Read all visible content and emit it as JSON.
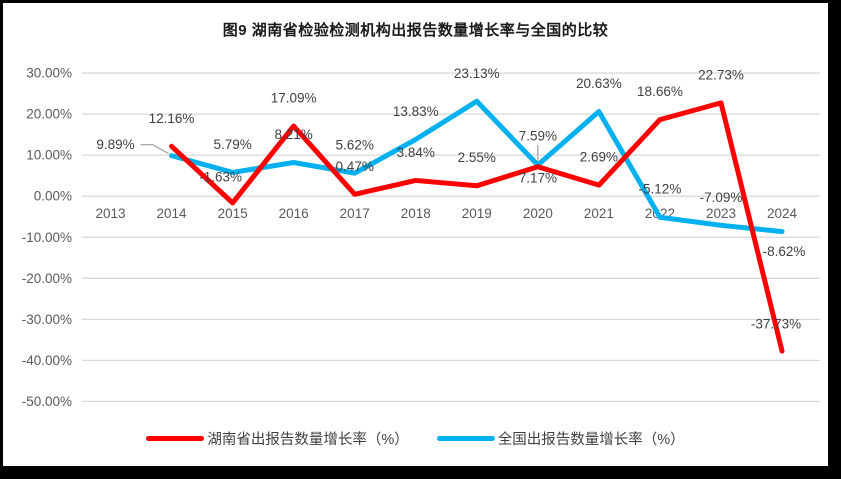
{
  "window": {
    "frame_color": "#000000",
    "canvas_color": "#FFFFFF"
  },
  "colors": {
    "grid": "#D9D9D9",
    "tick_text": "#595959",
    "data_label_text": "#404040",
    "leader": "#A6A6A6",
    "title_text": "#1A1A1A"
  },
  "chart_data": {
    "type": "line",
    "title": "图9 湖南省检验检测机构出报告数量增长率与全国的比较",
    "categories": [
      "2013",
      "2014",
      "2015",
      "2016",
      "2017",
      "2018",
      "2019",
      "2020",
      "2021",
      "2022",
      "2023",
      "2024"
    ],
    "series": [
      {
        "name": "湖南省出报告数量增长率（%）",
        "color": "#FF0000",
        "values": [
          null,
          12.16,
          -1.63,
          17.09,
          0.47,
          3.84,
          2.55,
          7.17,
          2.69,
          18.66,
          22.73,
          -37.73
        ],
        "point_labels": [
          null,
          "12.16%",
          "-1.63%",
          "17.09%",
          "0.47%",
          "3.84%",
          "2.55%",
          "7.17%",
          "2.69%",
          "18.66%",
          "22.73%",
          "-37.73%"
        ],
        "label_overrides": {
          "2": [
            -12,
            -26
          ],
          "7": [
            0,
            11
          ],
          "11": [
            -6,
            -27
          ]
        }
      },
      {
        "name": "全国出报告数量增长率（%）",
        "color": "#00B0F0",
        "values": [
          null,
          9.89,
          5.79,
          8.21,
          5.62,
          13.83,
          23.13,
          7.59,
          20.63,
          -5.12,
          -7.09,
          -8.62
        ],
        "point_labels": [
          null,
          "9.89%",
          "5.79%",
          "8.21%",
          "5.62%",
          "13.83%",
          "23.13%",
          "7.59%",
          "20.63%",
          "-5.12%",
          "-7.09%",
          "-8.62%"
        ],
        "label_overrides": {
          "1": [
            -56,
            -11,
            "elbow"
          ],
          "7": [
            0,
            -29,
            "v"
          ],
          "11": [
            2,
            20
          ]
        }
      }
    ],
    "y_axis": {
      "min": -50,
      "max": 30,
      "step": 10,
      "tick_labels": [
        "30.00%",
        "20.00%",
        "10.00%",
        "0.00%",
        "-10.00%",
        "-20.00%",
        "-30.00%",
        "-40.00%",
        "-50.00%"
      ]
    },
    "x_axis": {
      "label_row": "below zero line"
    },
    "grid": "horizontal",
    "legend_position": "bottom"
  }
}
